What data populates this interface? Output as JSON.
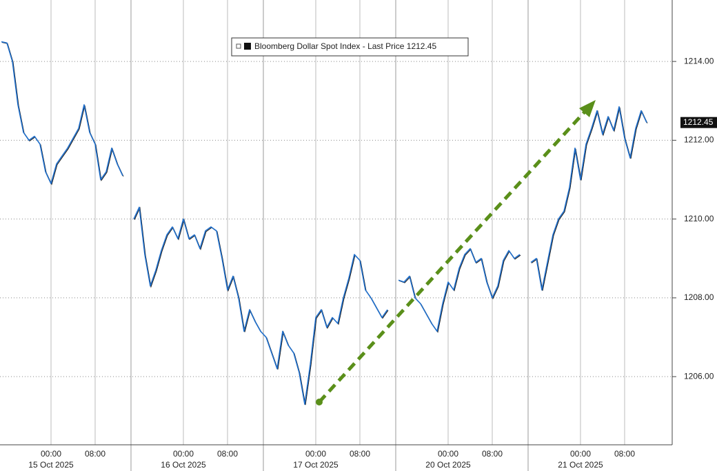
{
  "chart_data": {
    "type": "line",
    "last_value": 1212.45,
    "ylim": [
      1204.27,
      1215.56
    ],
    "yticks": [
      {
        "value": 1206,
        "label": "1206.00"
      },
      {
        "value": 1208,
        "label": "1208.00"
      },
      {
        "value": 1210,
        "label": "1210.00"
      },
      {
        "value": 1212,
        "label": "1212.00"
      },
      {
        "value": 1214,
        "label": "1214.00"
      }
    ],
    "grid": true,
    "categories": [
      null,
      null,
      null,
      null,
      null,
      null,
      null,
      null,
      null,
      "00:00",
      null,
      null,
      null,
      null,
      null,
      null,
      null,
      "08:00",
      null,
      null,
      null,
      null,
      null,
      null,
      null,
      null,
      null,
      null,
      null,
      null,
      null,
      null,
      null,
      "00:00",
      null,
      null,
      null,
      null,
      null,
      null,
      null,
      "08:00",
      null,
      null,
      null,
      null,
      null,
      null,
      null,
      null,
      null,
      null,
      null,
      null,
      null,
      null,
      null,
      "00:00",
      null,
      null,
      null,
      null,
      null,
      null,
      null,
      "08:00",
      null,
      null,
      null,
      null,
      null,
      null,
      null,
      null,
      null,
      null,
      null,
      null,
      null,
      null,
      null,
      "00:00",
      null,
      null,
      null,
      null,
      null,
      null,
      null,
      "08:00",
      null,
      null,
      null,
      null,
      null,
      null,
      null,
      null,
      null,
      null,
      null,
      null,
      null,
      null,
      null,
      "00:00",
      null,
      null,
      null,
      null,
      null,
      null,
      null,
      "08:00",
      null,
      null,
      null,
      null,
      null,
      null
    ],
    "dates": [
      "15 Oct 2025",
      "16 Oct 2025",
      "17 Oct 2025",
      "20 Oct 2025",
      "21 Oct 2025"
    ],
    "series": [
      {
        "name": "Bloomberg Dollar Spot Index - Last Price",
        "color": "#1f6fcc",
        "values": [
          1214.5,
          1214.47,
          1214.0,
          1212.9,
          1212.2,
          1212.0,
          1212.1,
          1211.9,
          1211.2,
          1210.9,
          1211.4,
          1211.6,
          1211.8,
          1212.05,
          1212.3,
          1212.9,
          1212.2,
          1211.9,
          1211.0,
          1211.2,
          1211.8,
          1211.4,
          1211.1,
          null,
          1210.0,
          1210.3,
          1209.1,
          1208.3,
          1208.7,
          1209.2,
          1209.6,
          1209.8,
          1209.5,
          1210.0,
          1209.5,
          1209.6,
          1209.25,
          1209.7,
          1209.8,
          1209.7,
          1209.0,
          1208.2,
          1208.55,
          1208.0,
          1207.15,
          1207.7,
          1207.4,
          1207.15,
          1207.0,
          1206.6,
          1206.2,
          1207.15,
          1206.8,
          1206.6,
          1206.1,
          1205.3,
          1206.3,
          1207.5,
          1207.7,
          1207.25,
          1207.5,
          1207.35,
          1208.0,
          1208.5,
          1209.1,
          1208.95,
          1208.2,
          1208.0,
          1207.75,
          1207.5,
          1207.7,
          null,
          1208.45,
          1208.4,
          1208.55,
          1208.0,
          1207.85,
          1207.6,
          1207.35,
          1207.15,
          1207.85,
          1208.4,
          1208.2,
          1208.75,
          1209.1,
          1209.25,
          1208.9,
          1209.0,
          1208.4,
          1208.0,
          1208.3,
          1208.95,
          1209.2,
          1209.0,
          1209.1,
          null,
          1208.9,
          1209.0,
          1208.2,
          1208.9,
          1209.6,
          1210.0,
          1210.2,
          1210.8,
          1211.8,
          1211.0,
          1211.9,
          1212.3,
          1212.75,
          1212.15,
          1212.6,
          1212.25,
          1212.85,
          1212.05,
          1211.55,
          1212.3,
          1212.75,
          1212.45,
          null,
          null
        ]
      }
    ]
  }
}
